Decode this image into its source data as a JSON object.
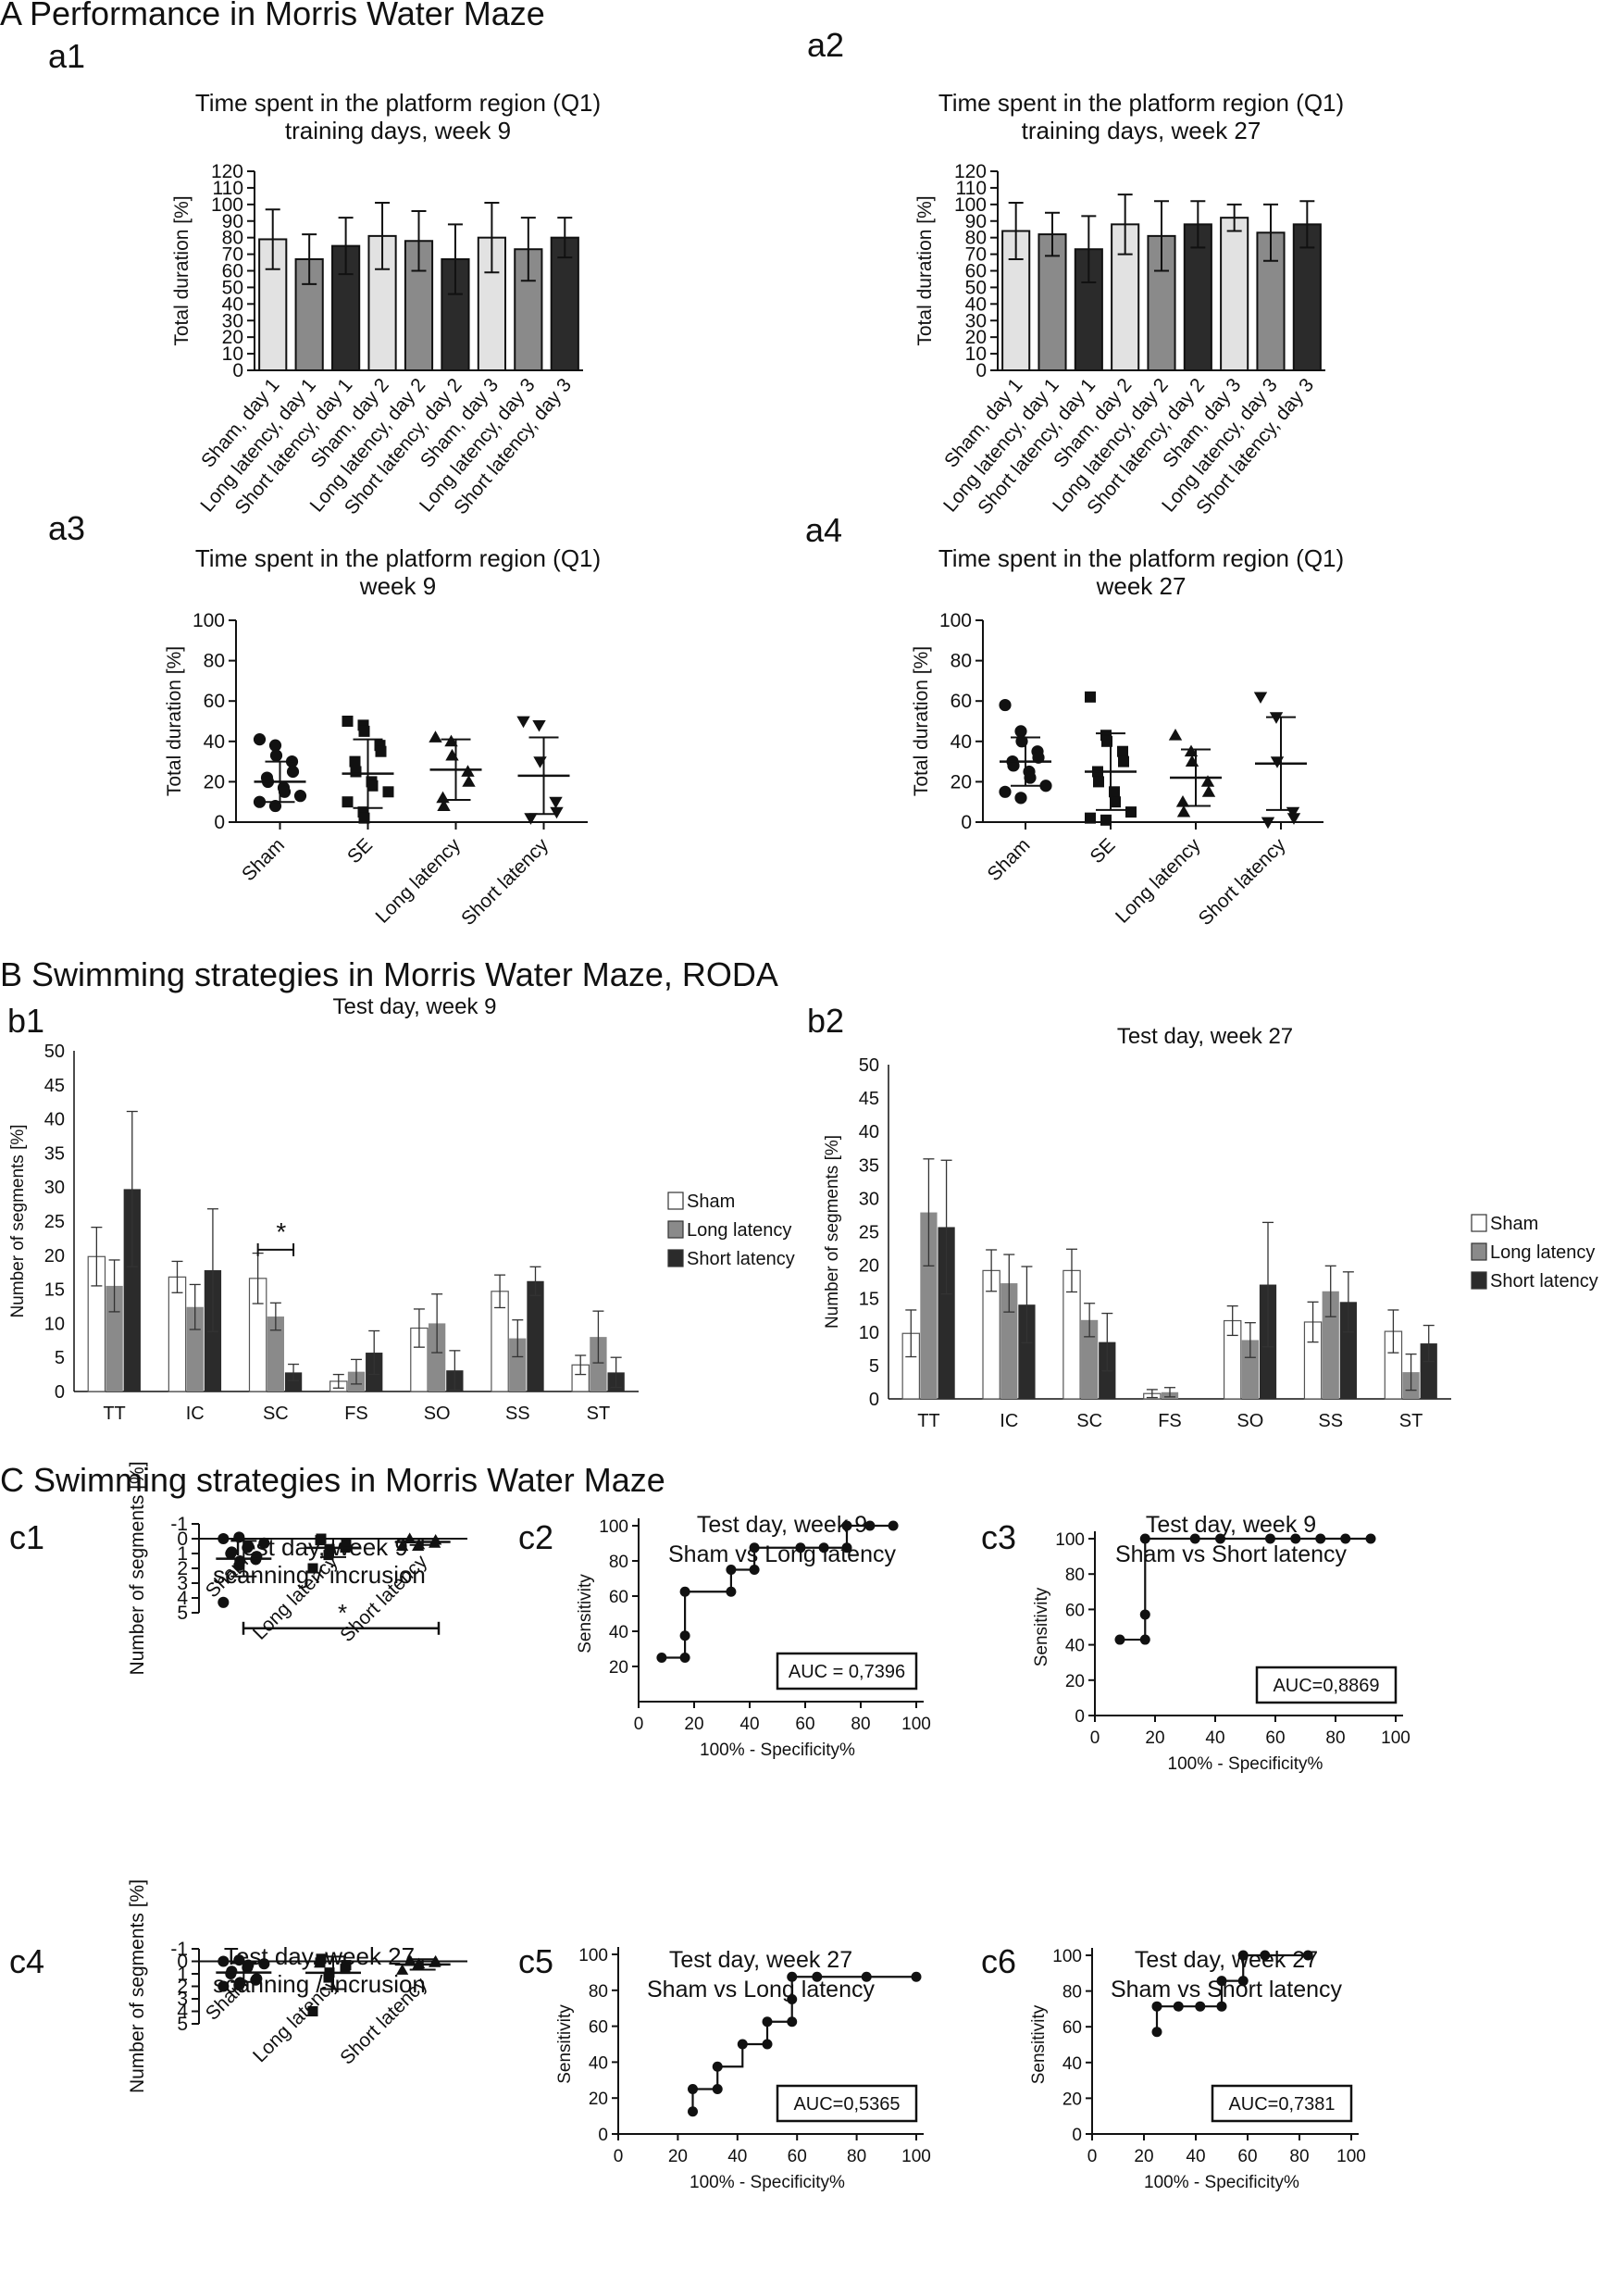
{
  "sections": {
    "A": "A Performance in Morris Water Maze",
    "B": "B Swimming strategies in Morris Water Maze, RODA",
    "C": "C Swimming strategies in Morris Water Maze"
  },
  "colors": {
    "sham": "#e2e2e2",
    "long": "#8a8a8a",
    "short": "#2b2b2b",
    "axis": "#111111",
    "roc_line": "#111111"
  },
  "chart_data": [
    {
      "id": "a1",
      "type": "bar",
      "title": [
        "Time spent in the platform region (Q1)",
        "training days, week 9"
      ],
      "ylabel": "Total duration [%]",
      "ylim": [
        0,
        120
      ],
      "yticks": [
        0,
        10,
        20,
        30,
        40,
        50,
        60,
        70,
        80,
        90,
        100,
        110,
        120
      ],
      "categories": [
        "Sham, day 1",
        "Long latency, day 1",
        "Short latency, day 1",
        "Sham, day 2",
        "Long latency, day 2",
        "Short latency, day 2",
        "Sham, day 3",
        "Long latency, day 3",
        "Short latency, day 3"
      ],
      "groups": [
        "sham",
        "long",
        "short",
        "sham",
        "long",
        "short",
        "sham",
        "long",
        "short"
      ],
      "values": [
        79,
        67,
        75,
        81,
        78,
        67,
        80,
        73,
        80
      ],
      "errors": [
        18,
        15,
        17,
        20,
        18,
        21,
        21,
        19,
        12
      ]
    },
    {
      "id": "a2",
      "type": "bar",
      "title": [
        "Time spent in the platform region (Q1)",
        "training days, week 27"
      ],
      "ylabel": "Total duration [%]",
      "ylim": [
        0,
        120
      ],
      "yticks": [
        0,
        10,
        20,
        30,
        40,
        50,
        60,
        70,
        80,
        90,
        100,
        110,
        120
      ],
      "categories": [
        "Sham, day 1",
        "Long latency, day 1",
        "Short latency, day 1",
        "Sham, day 2",
        "Long latency, day 2",
        "Short latency, day 2",
        "Sham, day 3",
        "Long latency, day 3",
        "Short latency, day 3"
      ],
      "groups": [
        "sham",
        "long",
        "short",
        "sham",
        "long",
        "short",
        "sham",
        "long",
        "short"
      ],
      "values": [
        84,
        82,
        73,
        88,
        81,
        88,
        92,
        83,
        88
      ],
      "errors": [
        17,
        13,
        20,
        18,
        21,
        14,
        8,
        17,
        14
      ]
    },
    {
      "id": "a3",
      "type": "scatter",
      "title": [
        "Time spent in the platform region (Q1)",
        "week 9"
      ],
      "ylabel": "Total duration [%]",
      "ylim": [
        0,
        100
      ],
      "yticks": [
        0,
        20,
        40,
        60,
        80,
        100
      ],
      "categories": [
        "Sham",
        "SE",
        "Long latency",
        "Short latency"
      ],
      "markers": [
        "circle",
        "square",
        "triangle",
        "triangle-down"
      ],
      "means": [
        20,
        24,
        26,
        23
      ],
      "sd": [
        10,
        17,
        15,
        19
      ],
      "points": [
        [
          41,
          38,
          33,
          30,
          25,
          22,
          20,
          17,
          15,
          13,
          10,
          8
        ],
        [
          50,
          48,
          45,
          38,
          35,
          30,
          25,
          20,
          18,
          15,
          10,
          5,
          2
        ],
        [
          42,
          40,
          33,
          25,
          20,
          12,
          8
        ],
        [
          50,
          48,
          30,
          10,
          5,
          2
        ]
      ]
    },
    {
      "id": "a4",
      "type": "scatter",
      "title": [
        "Time spent in the platform region (Q1)",
        "week 27"
      ],
      "ylabel": "Total duration [%]",
      "ylim": [
        0,
        100
      ],
      "yticks": [
        0,
        20,
        40,
        60,
        80,
        100
      ],
      "categories": [
        "Sham",
        "SE",
        "Long latency",
        "Short latency"
      ],
      "markers": [
        "circle",
        "square",
        "triangle",
        "triangle-down"
      ],
      "means": [
        30,
        25,
        22,
        29
      ],
      "sd": [
        12,
        19,
        14,
        23
      ],
      "points": [
        [
          58,
          45,
          40,
          35,
          32,
          30,
          28,
          25,
          22,
          18,
          15,
          12
        ],
        [
          62,
          43,
          40,
          35,
          30,
          25,
          20,
          15,
          10,
          5,
          2,
          1
        ],
        [
          43,
          35,
          30,
          20,
          15,
          10,
          5
        ],
        [
          62,
          52,
          30,
          5,
          2,
          0
        ]
      ]
    },
    {
      "id": "b1",
      "type": "bar",
      "title": [
        "Test day, week 9"
      ],
      "ylabel": "Number of segments [%]",
      "ylim": [
        0,
        50
      ],
      "yticks": [
        0,
        5,
        10,
        15,
        20,
        25,
        30,
        35,
        40,
        45,
        50
      ],
      "categories": [
        "TT",
        "IC",
        "SC",
        "FS",
        "SO",
        "SS",
        "ST"
      ],
      "series": [
        {
          "name": "Sham",
          "values": [
            19.8,
            16.8,
            16.6,
            1.5,
            9.3,
            14.7,
            3.9
          ],
          "errors": [
            4.3,
            2.3,
            3.7,
            1.0,
            2.8,
            2.4,
            1.4
          ]
        },
        {
          "name": "Long latency",
          "values": [
            15.5,
            12.4,
            11.0,
            2.9,
            10.0,
            7.8,
            8.0
          ],
          "errors": [
            3.8,
            3.3,
            2.0,
            1.8,
            4.3,
            2.7,
            3.8
          ]
        },
        {
          "name": "Short latency",
          "values": [
            29.7,
            17.8,
            2.8,
            5.7,
            3.1,
            16.2,
            2.8
          ],
          "errors": [
            11.4,
            9.0,
            1.2,
            3.2,
            2.9,
            2.1,
            2.2
          ]
        }
      ],
      "annotation": "*",
      "legend": [
        "Sham",
        "Long latency",
        "Short latency"
      ]
    },
    {
      "id": "b2",
      "type": "bar",
      "title": [
        "Test day, week 27"
      ],
      "ylabel": "Number of segments [%]",
      "ylim": [
        0,
        50
      ],
      "yticks": [
        0,
        5,
        10,
        15,
        20,
        25,
        30,
        35,
        40,
        45,
        50
      ],
      "categories": [
        "TT",
        "IC",
        "SC",
        "FS",
        "SO",
        "SS",
        "ST"
      ],
      "series": [
        {
          "name": "Sham",
          "values": [
            9.8,
            19.2,
            19.2,
            0.8,
            11.7,
            11.5,
            10.1
          ],
          "errors": [
            3.5,
            3.1,
            3.2,
            0.6,
            2.2,
            3.0,
            3.2
          ]
        },
        {
          "name": "Long latency",
          "values": [
            27.9,
            17.3,
            11.8,
            1.0,
            8.8,
            16.1,
            4.0
          ],
          "errors": [
            8.0,
            4.3,
            2.5,
            0.7,
            2.6,
            3.8,
            2.7
          ]
        },
        {
          "name": "Short latency",
          "values": [
            25.7,
            14.1,
            8.5,
            0,
            17.1,
            14.5,
            8.3
          ],
          "errors": [
            10.0,
            5.7,
            4.3,
            0,
            9.3,
            4.5,
            2.7
          ]
        }
      ],
      "legend": [
        "Sham",
        "Long latency",
        "Short latency"
      ]
    },
    {
      "id": "c1",
      "type": "scatter",
      "title": [
        "Test day, week 9",
        "scanning / incrusion"
      ],
      "ylabel": "Number of segments [%]",
      "ylim": [
        -1,
        5
      ],
      "yticks": [
        -1,
        0,
        1,
        2,
        3,
        4,
        5
      ],
      "categories": [
        "Sham",
        "Long latency",
        "Short latency"
      ],
      "markers": [
        "circle",
        "square",
        "triangle"
      ],
      "means": [
        1.35,
        0.62,
        0.22
      ],
      "sd": [
        1.2,
        0.62,
        0.2
      ],
      "points": [
        [
          4.3,
          1.8,
          1.5,
          1.4,
          1.2,
          1.0,
          0.9,
          0.6,
          0.5,
          0.3,
          0.0,
          -0.1
        ],
        [
          2.0,
          1.1,
          0.7,
          0.6,
          0.3,
          0.1,
          0.0
        ],
        [
          0.5,
          0.5,
          0.4,
          0.3,
          0.1,
          0.0
        ]
      ],
      "annotation": "*"
    },
    {
      "id": "c2",
      "type": "line",
      "title": [
        "Test day, week 9",
        "Sham vs Long latency"
      ],
      "xlabel": "100% - Specificity%",
      "ylabel": "Sensitivity",
      "xlim": [
        0,
        100
      ],
      "ylim": [
        0,
        100
      ],
      "xticks": [
        0,
        20,
        40,
        60,
        80,
        100
      ],
      "yticks": [
        20,
        40,
        60,
        80,
        100
      ],
      "x": [
        8.3,
        16.7,
        16.7,
        16.7,
        33.3,
        33.3,
        41.7,
        41.7,
        58.3,
        66.7,
        75,
        75,
        83.3,
        91.7
      ],
      "y": [
        25,
        25,
        37.5,
        62.5,
        62.5,
        75,
        75,
        87.5,
        87.5,
        87.5,
        87.5,
        100,
        100,
        100
      ],
      "auc": "AUC = 0,7396"
    },
    {
      "id": "c3",
      "type": "line",
      "title": [
        "Test day, week 9",
        "Sham vs Short latency"
      ],
      "xlabel": "100% - Specificity%",
      "ylabel": "Sensitivity",
      "xlim": [
        0,
        100
      ],
      "ylim": [
        0,
        100
      ],
      "xticks": [
        0,
        20,
        40,
        60,
        80,
        100
      ],
      "yticks": [
        0,
        20,
        40,
        60,
        80,
        100
      ],
      "x": [
        8.3,
        16.7,
        16.7,
        16.7,
        33.3,
        41.7,
        58.3,
        66.7,
        75,
        83.3,
        91.7
      ],
      "y": [
        42.9,
        42.9,
        57.1,
        100,
        100,
        100,
        100,
        100,
        100,
        100,
        100
      ],
      "auc": "AUC=0,8869"
    },
    {
      "id": "c4",
      "type": "scatter",
      "title": [
        "Test day, week 27",
        "scanning / incrusion"
      ],
      "ylabel": "Number of segments [%]",
      "ylim": [
        -1,
        5
      ],
      "yticks": [
        -1,
        0,
        1,
        2,
        3,
        4,
        5
      ],
      "categories": [
        "Sham",
        "Long latency",
        "Short latency"
      ],
      "markers": [
        "circle",
        "square",
        "triangle"
      ],
      "means": [
        0.9,
        0.92,
        0.25
      ],
      "sd": [
        0.75,
        1.3,
        0.42
      ],
      "points": [
        [
          2.0,
          1.9,
          1.7,
          1.5,
          1.4,
          1.0,
          0.8,
          0.5,
          0.3,
          0.2,
          0.0,
          -0.1
        ],
        [
          4.0,
          1.3,
          0.9,
          0.6,
          0.3,
          0.1,
          -0.2
        ],
        [
          0.7,
          0.3,
          0.2,
          0.1,
          0.0,
          0.0,
          0.0
        ]
      ]
    },
    {
      "id": "c5",
      "type": "line",
      "title": [
        "Test day, week 27",
        "Sham vs Long latency"
      ],
      "xlabel": "100% - Specificity%",
      "ylabel": "Sensitivity",
      "xlim": [
        0,
        100
      ],
      "ylim": [
        0,
        100
      ],
      "xticks": [
        0,
        20,
        40,
        60,
        80,
        100
      ],
      "yticks": [
        0,
        20,
        40,
        60,
        80,
        100
      ],
      "x": [
        25,
        25,
        33.3,
        33.3,
        41.7,
        50,
        50,
        58.3,
        58.3,
        58.3,
        66.7,
        83.3,
        100
      ],
      "y": [
        12.5,
        25,
        25,
        37.5,
        50,
        50,
        62.5,
        62.5,
        75,
        87.5,
        87.5,
        87.5,
        87.5
      ],
      "auc": "AUC=0,5365"
    },
    {
      "id": "c6",
      "type": "line",
      "title": [
        "Test day, week 27",
        "Sham vs Short latency"
      ],
      "xlabel": "100% - Specificity%",
      "ylabel": "Sensitivity",
      "xlim": [
        0,
        100
      ],
      "ylim": [
        0,
        100
      ],
      "xticks": [
        0,
        20,
        40,
        60,
        80,
        100
      ],
      "yticks": [
        0,
        20,
        40,
        60,
        80,
        100
      ],
      "x": [
        25,
        25,
        33.3,
        41.7,
        50,
        50,
        58.3,
        58.3,
        66.7,
        83.3
      ],
      "y": [
        57.1,
        71.4,
        71.4,
        71.4,
        71.4,
        85.7,
        85.7,
        100,
        100,
        100
      ],
      "auc": "AUC=0,7381"
    }
  ]
}
